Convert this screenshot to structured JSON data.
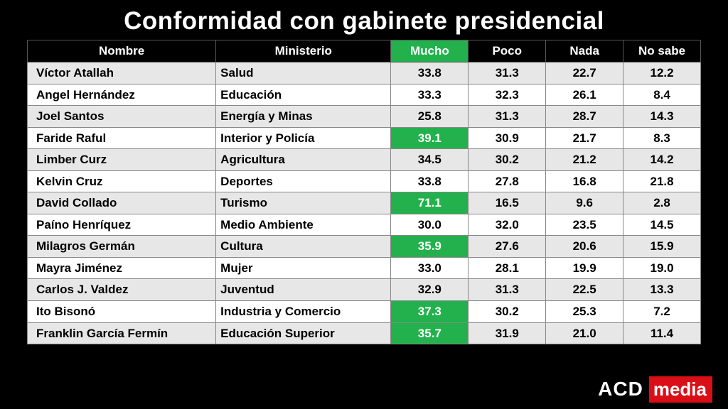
{
  "title": "Conformidad con gabinete presidencial",
  "columns": {
    "nombre": "Nombre",
    "ministerio": "Ministerio",
    "mucho": "Mucho",
    "poco": "Poco",
    "nada": "Nada",
    "nosabe": "No sabe"
  },
  "highlight_color": "#22b14c",
  "row_light_bg": "#e7e7e7",
  "row_white_bg": "#ffffff",
  "text_color": "#000000",
  "header_bg": "#000000",
  "header_fg": "#ffffff",
  "rows": [
    {
      "nombre": "Víctor Atallah",
      "ministerio": "Salud",
      "mucho": "33.8",
      "poco": "31.3",
      "nada": "22.7",
      "nosabe": "12.2",
      "hl_mucho": false
    },
    {
      "nombre": "Angel Hernández",
      "ministerio": "Educación",
      "mucho": "33.3",
      "poco": "32.3",
      "nada": "26.1",
      "nosabe": "8.4",
      "hl_mucho": false
    },
    {
      "nombre": "Joel Santos",
      "ministerio": "Energía y Minas",
      "mucho": "25.8",
      "poco": "31.3",
      "nada": "28.7",
      "nosabe": "14.3",
      "hl_mucho": false
    },
    {
      "nombre": "Faride Raful",
      "ministerio": "Interior y Policía",
      "mucho": "39.1",
      "poco": "30.9",
      "nada": "21.7",
      "nosabe": "8.3",
      "hl_mucho": true
    },
    {
      "nombre": "Limber Curz",
      "ministerio": "Agricultura",
      "mucho": "34.5",
      "poco": "30.2",
      "nada": "21.2",
      "nosabe": "14.2",
      "hl_mucho": false
    },
    {
      "nombre": "Kelvin Cruz",
      "ministerio": "Deportes",
      "mucho": "33.8",
      "poco": "27.8",
      "nada": "16.8",
      "nosabe": "21.8",
      "hl_mucho": false
    },
    {
      "nombre": "David Collado",
      "ministerio": "Turismo",
      "mucho": "71.1",
      "poco": "16.5",
      "nada": "9.6",
      "nosabe": "2.8",
      "hl_mucho": true
    },
    {
      "nombre": "Paíno Henríquez",
      "ministerio": "Medio Ambiente",
      "mucho": "30.0",
      "poco": "32.0",
      "nada": "23.5",
      "nosabe": "14.5",
      "hl_mucho": false
    },
    {
      "nombre": "Milagros Germán",
      "ministerio": "Cultura",
      "mucho": "35.9",
      "poco": "27.6",
      "nada": "20.6",
      "nosabe": "15.9",
      "hl_mucho": true
    },
    {
      "nombre": "Mayra Jiménez",
      "ministerio": "Mujer",
      "mucho": "33.0",
      "poco": "28.1",
      "nada": "19.9",
      "nosabe": "19.0",
      "hl_mucho": false
    },
    {
      "nombre": "Carlos J. Valdez",
      "ministerio": "Juventud",
      "mucho": "32.9",
      "poco": "31.3",
      "nada": "22.5",
      "nosabe": "13.3",
      "hl_mucho": false
    },
    {
      "nombre": "Ito Bisonó",
      "ministerio": "Industria y Comercio",
      "mucho": "37.3",
      "poco": "30.2",
      "nada": "25.3",
      "nosabe": "7.2",
      "hl_mucho": true
    },
    {
      "nombre": "Franklin García Fermín",
      "ministerio": "Educación Superior",
      "mucho": "35.7",
      "poco": "31.9",
      "nada": "21.0",
      "nosabe": "11.4",
      "hl_mucho": true
    }
  ],
  "logo": {
    "left": "ACD",
    "right": "media",
    "right_bg": "#d90e17"
  }
}
